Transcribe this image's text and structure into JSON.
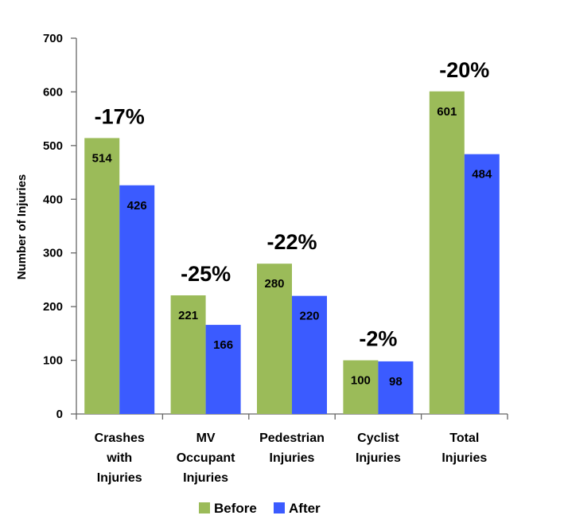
{
  "chart_data": {
    "type": "bar",
    "title": "",
    "xlabel": "",
    "ylabel": "Number of Injuries",
    "ylim": [
      0,
      700
    ],
    "yticks": [
      0,
      100,
      200,
      300,
      400,
      500,
      600,
      700
    ],
    "grid": false,
    "legend_position": "bottom",
    "categories": [
      [
        "Crashes",
        "with",
        "Injuries"
      ],
      [
        "MV",
        "Occupant",
        "Injuries"
      ],
      [
        "Pedestrian",
        "Injuries"
      ],
      [
        "Cyclist",
        "Injuries"
      ],
      [
        "Total",
        "Injuries"
      ]
    ],
    "series": [
      {
        "name": "Before",
        "color": "#9BBB59",
        "values": [
          514,
          221,
          280,
          100,
          601
        ]
      },
      {
        "name": "After",
        "color": "#3B5BFF",
        "values": [
          426,
          166,
          220,
          98,
          484
        ]
      }
    ],
    "annotations": [
      "-17%",
      "-25%",
      "-22%",
      "-2%",
      "-20%"
    ]
  }
}
